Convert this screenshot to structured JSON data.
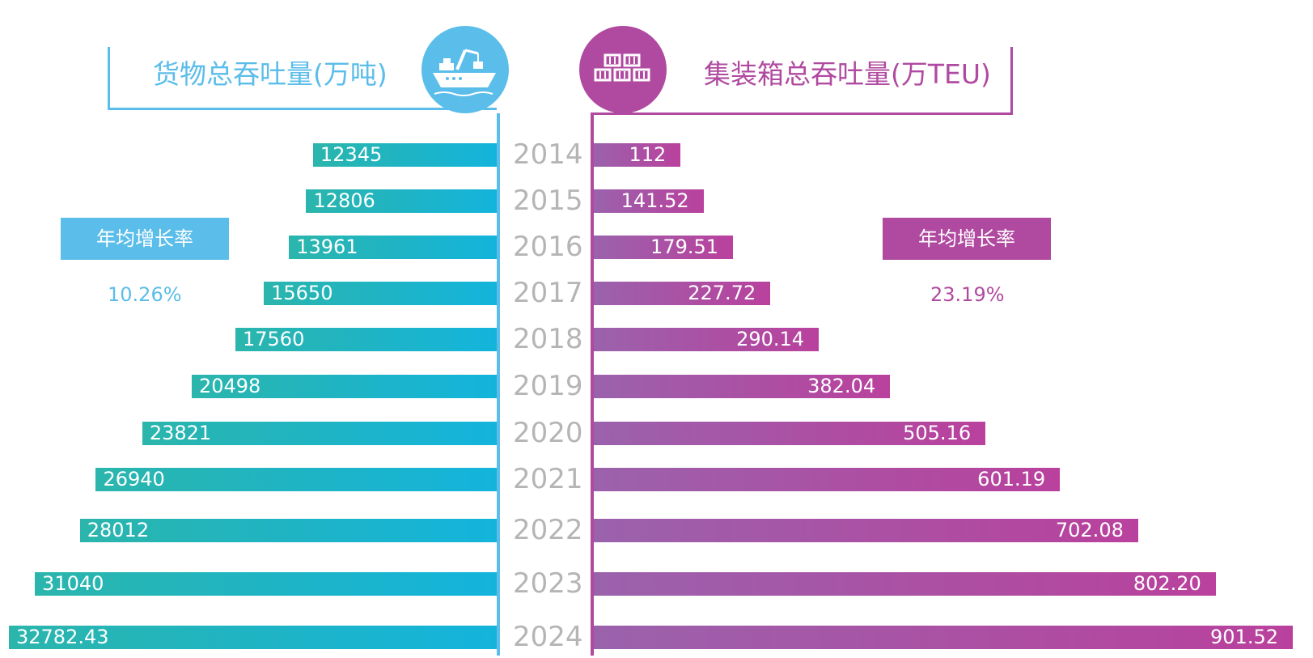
{
  "colors": {
    "cargo": "#5bbde9",
    "container": "#b04aa0"
  },
  "left_panel": {
    "title": "货物总吞吐量(万吨)",
    "icon": "ship-icon",
    "rate_label": "年均增长率",
    "rate_value": "10.26%"
  },
  "right_panel": {
    "title": "集装箱总吞吐量(万TEU)",
    "icon": "containers-icon",
    "rate_label": "年均增长率",
    "rate_value": "23.19%"
  },
  "chart_data": {
    "type": "bar",
    "categories": [
      "2014",
      "2015",
      "2016",
      "2017",
      "2018",
      "2019",
      "2020",
      "2021",
      "2022",
      "2023",
      "2024"
    ],
    "series": [
      {
        "name": "货物总吞吐量(万吨)",
        "values": [
          12345,
          12806,
          13961,
          15650,
          17560,
          20498,
          23821,
          26940,
          28012,
          31040,
          32782.43
        ],
        "labels": [
          "12345",
          "12806",
          "13961",
          "15650",
          "17560",
          "20498",
          "23821",
          "26940",
          "28012",
          "31040",
          "32782.43"
        ]
      },
      {
        "name": "集装箱总吞吐量(万TEU)",
        "values": [
          112,
          141.52,
          179.51,
          227.72,
          290.14,
          382.04,
          505.16,
          601.19,
          702.08,
          802.2,
          901.52
        ],
        "labels": [
          "112",
          "141.52",
          "179.51",
          "227.72",
          "290.14",
          "382.04",
          "505.16",
          "601.19",
          "702.08",
          "802.20",
          "901.52"
        ]
      }
    ]
  }
}
